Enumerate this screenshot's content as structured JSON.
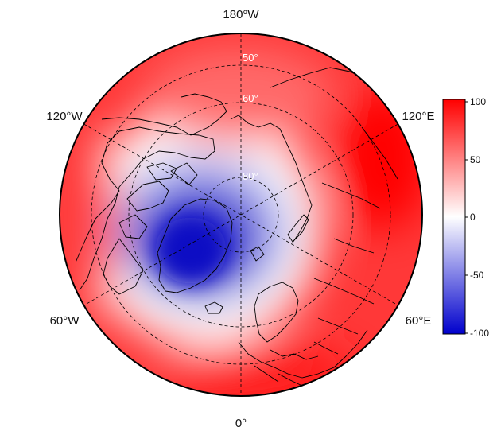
{
  "map": {
    "projection": "north-polar-stereographic",
    "longitude_labels": [
      "180°W",
      "120°W",
      "120°E",
      "60°W",
      "60°E",
      "0°"
    ],
    "latitude_labels": [
      "50°",
      "60°",
      "80°"
    ]
  },
  "colorbar": {
    "ticks": [
      "100",
      "50",
      "0",
      "-50",
      "-100"
    ],
    "range": [
      -100,
      100
    ],
    "colors": {
      "max": "#ff0000",
      "mid": "#ffffff",
      "min": "#0000cc"
    }
  },
  "colors": {
    "coastline": "#000000",
    "graticule": "#000000",
    "background": "#ffffff"
  }
}
